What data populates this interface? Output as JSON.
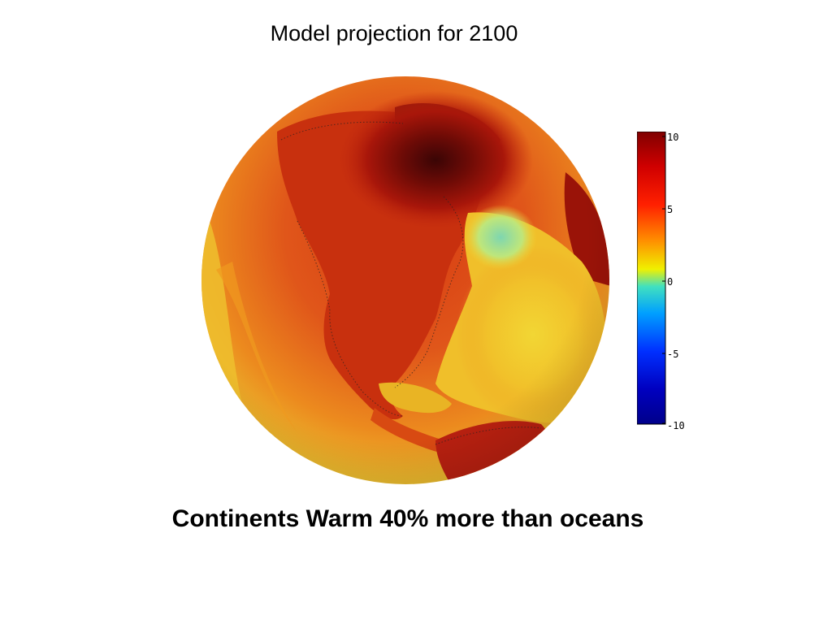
{
  "slide": {
    "title": "Model projection for 2100",
    "caption": "Continents Warm 40% more than oceans"
  },
  "colorbar": {
    "ticks": [
      "10",
      "5",
      "0",
      "-5",
      "-10"
    ],
    "range": [
      -10,
      10
    ],
    "colormap": [
      "#800000",
      "#ff0000",
      "#ffff00",
      "#00ffff",
      "#0000ff",
      "#00008f"
    ]
  },
  "map": {
    "projection": "orthographic globe centered on North America",
    "colors": {
      "hot_max": "#3a0505",
      "hot": "#9e1208",
      "warm": "#d43a10",
      "mild": "#f07a18",
      "ocean_warm": "#f4c52a",
      "ocean_cool": "#e6e03a",
      "cool_patch": "#7ed6b0",
      "coast_outline": "#222222"
    }
  }
}
